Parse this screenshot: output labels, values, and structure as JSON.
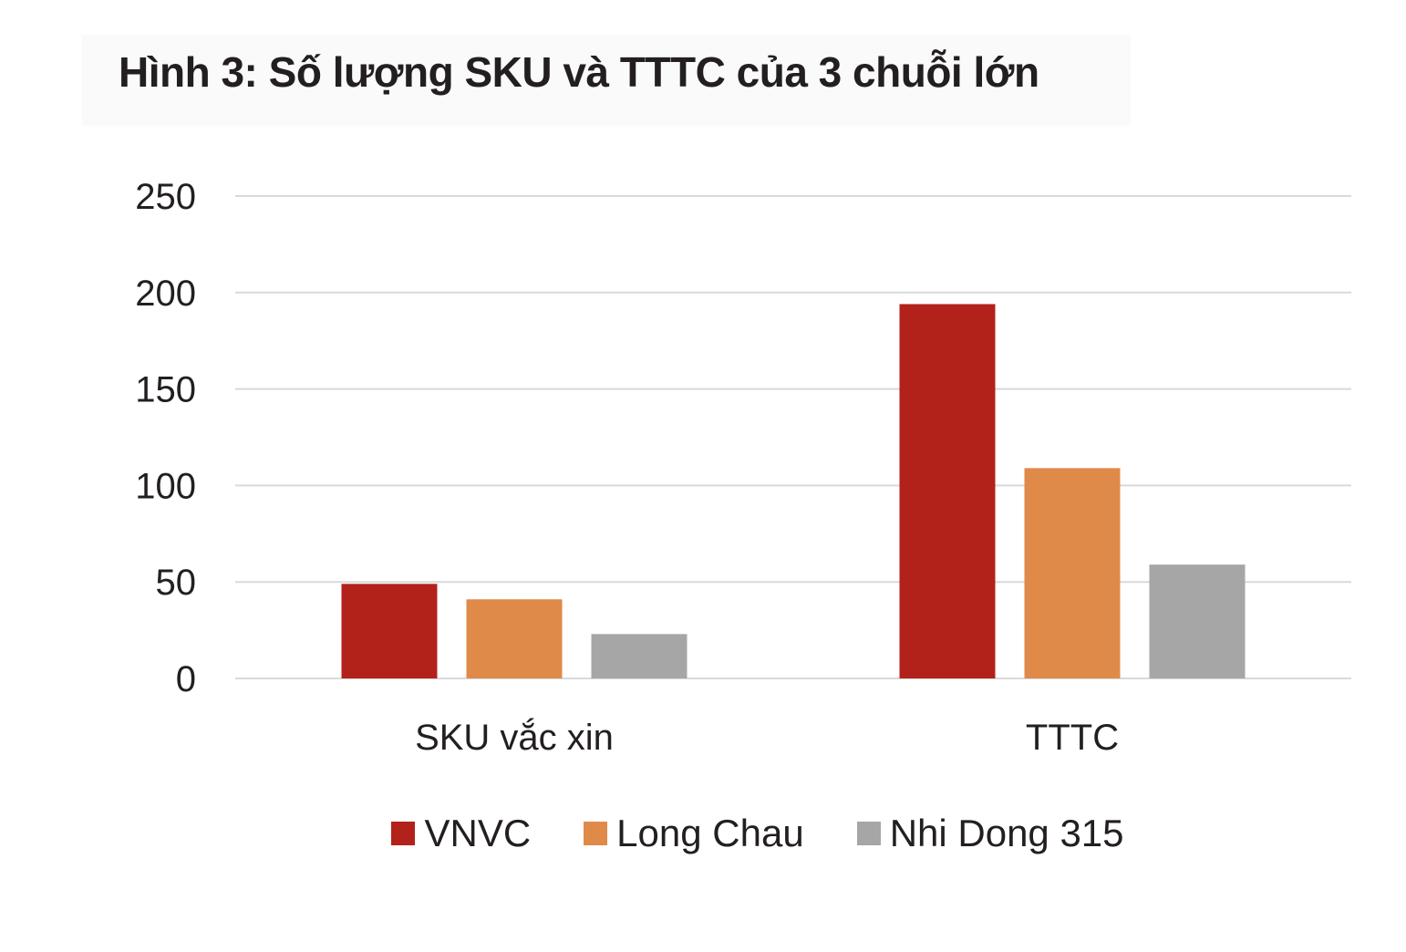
{
  "chart_data": {
    "type": "bar",
    "title": "Hình 3: Số lượng SKU và TTTC của 3 chuỗi lớn",
    "categories": [
      "SKU vắc xin",
      "TTTC"
    ],
    "series": [
      {
        "name": "VNVC",
        "color": "#b3211b",
        "values": [
          49,
          194
        ]
      },
      {
        "name": "Long Chau",
        "color": "#e08a4a",
        "values": [
          41,
          109
        ]
      },
      {
        "name": "Nhi Dong 315",
        "color": "#a6a6a6",
        "values": [
          23,
          59
        ]
      }
    ],
    "ylim": [
      0,
      250
    ],
    "yticks": [
      "0",
      "50",
      "100",
      "150",
      "200",
      "250"
    ],
    "xlabel": "",
    "ylabel": "",
    "grid": true,
    "legend_position": "bottom"
  }
}
